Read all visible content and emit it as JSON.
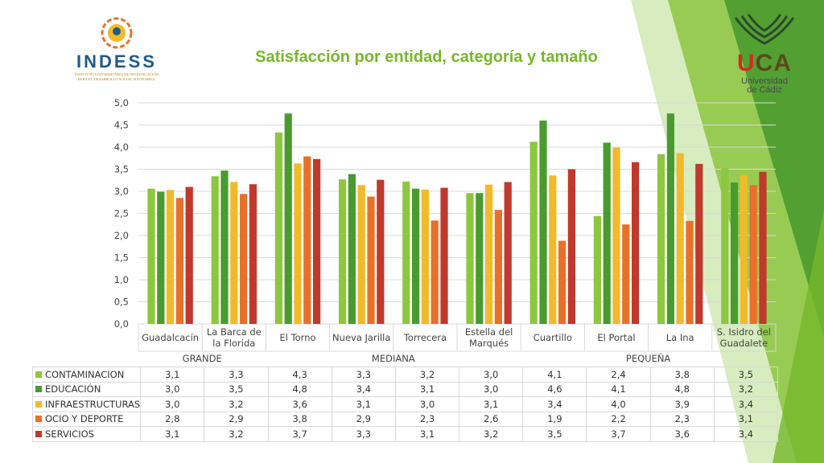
{
  "title": "Satisfacción por entidad, categoría y tamaño",
  "logos": {
    "left": {
      "name": "INDESS",
      "subtitle_lines": [
        "INSTITUTO UNIVERSITARIO DE INVESTIGACIÓN",
        "PARA EL DESARROLLO SOCIAL SOSTENIBLE"
      ]
    },
    "right": {
      "name_prefix": "U",
      "name_suffix": "CA",
      "line1": "Universidad",
      "line2": "de Cádiz"
    }
  },
  "chart_data": {
    "type": "bar",
    "categories": [
      "Guadalcacín",
      "La Barca de la Florida",
      "El Torno",
      "Nueva Jarilla",
      "Torrecera",
      "Estella del Marqués",
      "Cuartillo",
      "El Portal",
      "La Ina",
      "S. Isidro del Guadalete"
    ],
    "category_labels": [
      [
        "Guadalcacín"
      ],
      [
        "La Barca de",
        "la Florida"
      ],
      [
        "El Torno"
      ],
      [
        "Nueva Jarilla"
      ],
      [
        "Torrecera"
      ],
      [
        "Estella del",
        "Marqués"
      ],
      [
        "Cuartillo"
      ],
      [
        "El Portal"
      ],
      [
        "La Ina"
      ],
      [
        "S. Isidro del",
        "Guadalete"
      ]
    ],
    "groups": [
      {
        "label": "GRANDE",
        "span": 2
      },
      {
        "label": "MEDIANA",
        "span": 4
      },
      {
        "label": "PEQUEÑA",
        "span": 4
      }
    ],
    "series": [
      {
        "name": "CONTAMINACION",
        "color": "#8dc63f",
        "values": [
          3.06,
          3.34,
          4.33,
          3.27,
          3.22,
          2.96,
          4.12,
          2.44,
          3.84,
          3.52
        ],
        "labels": [
          "3,1",
          "3,3",
          "4,3",
          "3,3",
          "3,2",
          "3,0",
          "4,1",
          "2,4",
          "3,8",
          "3,5"
        ]
      },
      {
        "name": "EDUCACIÓN",
        "color": "#4a9b2f",
        "values": [
          2.99,
          3.47,
          4.76,
          3.39,
          3.06,
          2.96,
          4.6,
          4.1,
          4.76,
          3.2
        ]
      },
      {
        "name": "INFRAESTRUCTURAS",
        "color": "#f2b92b",
        "values": [
          3.03,
          3.21,
          3.63,
          3.14,
          3.04,
          3.15,
          3.36,
          3.99,
          3.86,
          3.36
        ]
      },
      {
        "name": "OCIO Y DEPORTE",
        "color": "#e8702a",
        "values": [
          2.85,
          2.94,
          3.79,
          2.88,
          2.34,
          2.58,
          1.88,
          2.25,
          2.33,
          3.14
        ]
      },
      {
        "name": "SERVICIOS",
        "color": "#c0392b",
        "values": [
          3.1,
          3.16,
          3.73,
          3.26,
          3.08,
          3.21,
          3.5,
          3.66,
          3.62,
          3.44
        ]
      }
    ],
    "table": [
      [
        "3,1",
        "3,3",
        "4,3",
        "3,3",
        "3,2",
        "3,0",
        "4,1",
        "2,4",
        "3,8",
        "3,5"
      ],
      [
        "3,0",
        "3,5",
        "4,8",
        "3,4",
        "3,1",
        "3,0",
        "4,6",
        "4,1",
        "4,8",
        "3,2"
      ],
      [
        "3,0",
        "3,2",
        "3,6",
        "3,1",
        "3,0",
        "3,1",
        "3,4",
        "4,0",
        "3,9",
        "3,4"
      ],
      [
        "2,8",
        "2,9",
        "3,8",
        "2,9",
        "2,3",
        "2,6",
        "1,9",
        "2,2",
        "2,3",
        "3,1"
      ],
      [
        "3,1",
        "3,2",
        "3,7",
        "3,3",
        "3,1",
        "3,2",
        "3,5",
        "3,7",
        "3,6",
        "3,4"
      ]
    ],
    "ylim": [
      0,
      5
    ],
    "yticks": [
      "0,0",
      "0,5",
      "1,0",
      "1,5",
      "2,0",
      "2,5",
      "3,0",
      "3,5",
      "4,0",
      "4,5",
      "5,0"
    ],
    "ytick_values": [
      0,
      0.5,
      1,
      1.5,
      2,
      2.5,
      3,
      3.5,
      4,
      4.5,
      5
    ],
    "grid": true
  }
}
